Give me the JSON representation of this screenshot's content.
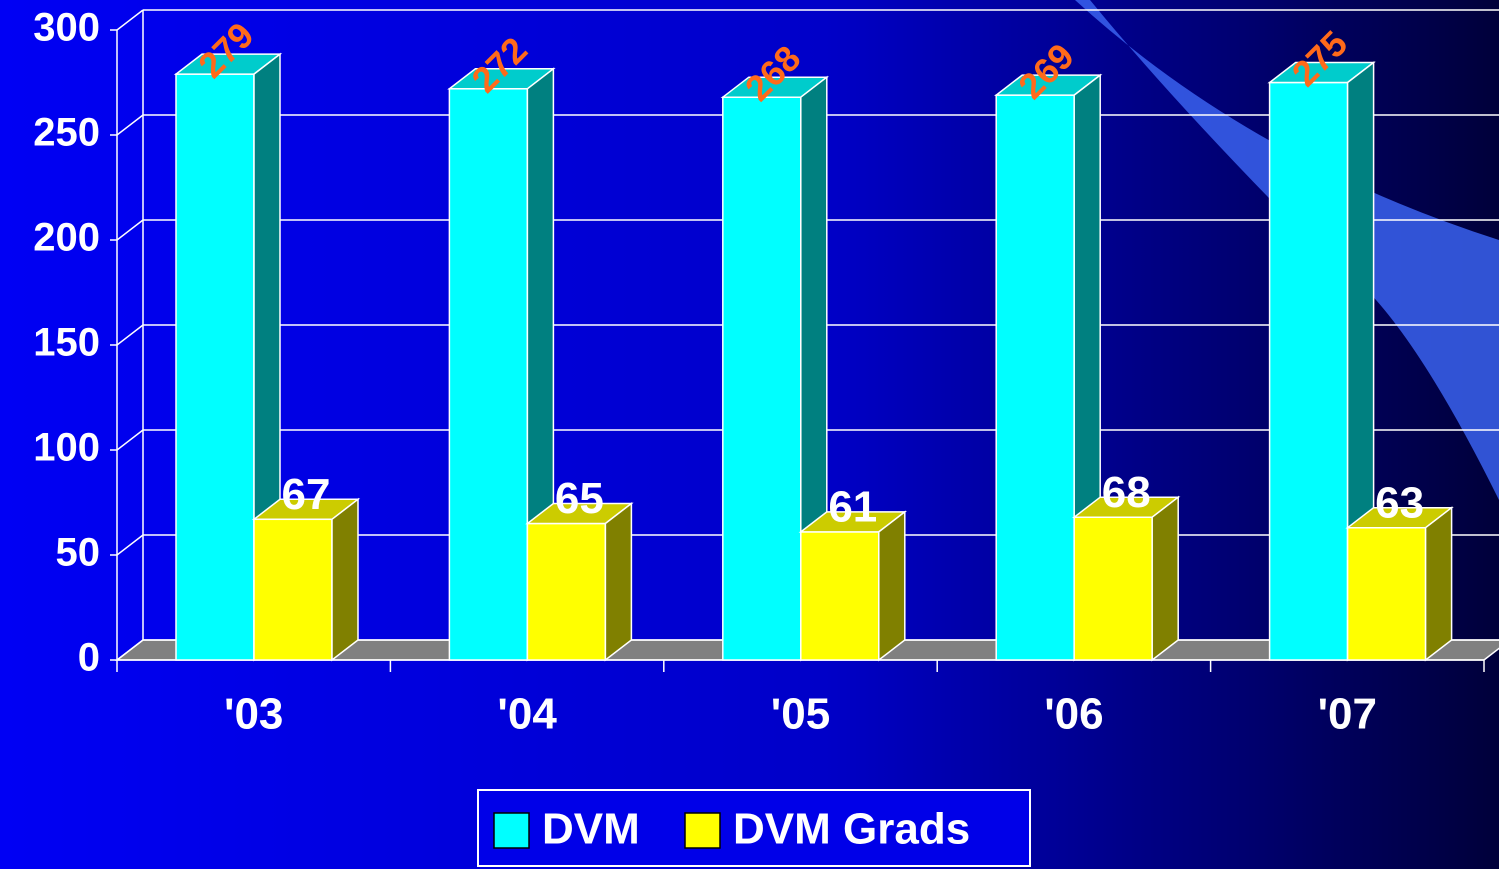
{
  "chart_data": {
    "type": "bar3d",
    "categories": [
      "'03",
      "'04",
      "'05",
      "'06",
      "'07"
    ],
    "series": [
      {
        "name": "DVM",
        "color": "#00ffff",
        "values": [
          279,
          272,
          268,
          269,
          275
        ]
      },
      {
        "name": "DVM Grads",
        "color": "#ffff00",
        "values": [
          67,
          65,
          61,
          68,
          63
        ]
      }
    ],
    "ylim": [
      0,
      300
    ],
    "yticks": [
      0,
      50,
      100,
      150,
      200,
      250,
      300
    ],
    "grid": true,
    "legend": "bottom"
  }
}
